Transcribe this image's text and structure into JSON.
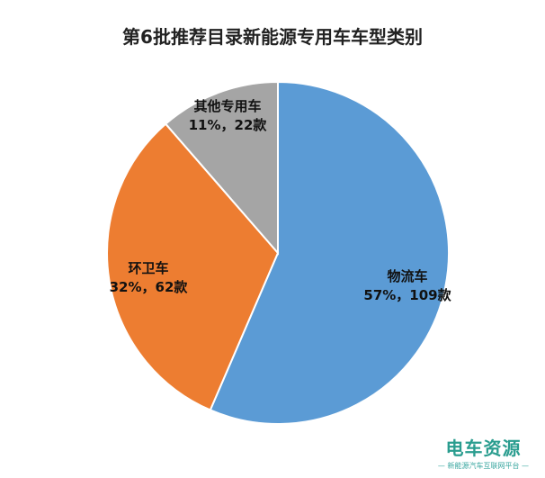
{
  "chart_data": {
    "type": "pie",
    "title": "第6批推荐目录新能源专用车车型类别",
    "slices": [
      {
        "category": "物流车",
        "value": 109,
        "percent_label": "57%",
        "label": "物流车",
        "detail": "57%，109款",
        "color": "#5b9bd5"
      },
      {
        "category": "环卫车",
        "value": 62,
        "percent_label": "32%",
        "label": "环卫车",
        "detail": "32%，62款",
        "color": "#ed7d31"
      },
      {
        "category": "其他专用车",
        "value": 22,
        "percent_label": "11%",
        "label": "其他专用车",
        "detail": "11%，22款",
        "color": "#a5a5a5"
      }
    ],
    "start": "12 o'clock",
    "direction": "clockwise"
  },
  "watermark": {
    "brand": "电车资源",
    "subtitle": "— 新能源汽车互联网平台 —"
  }
}
